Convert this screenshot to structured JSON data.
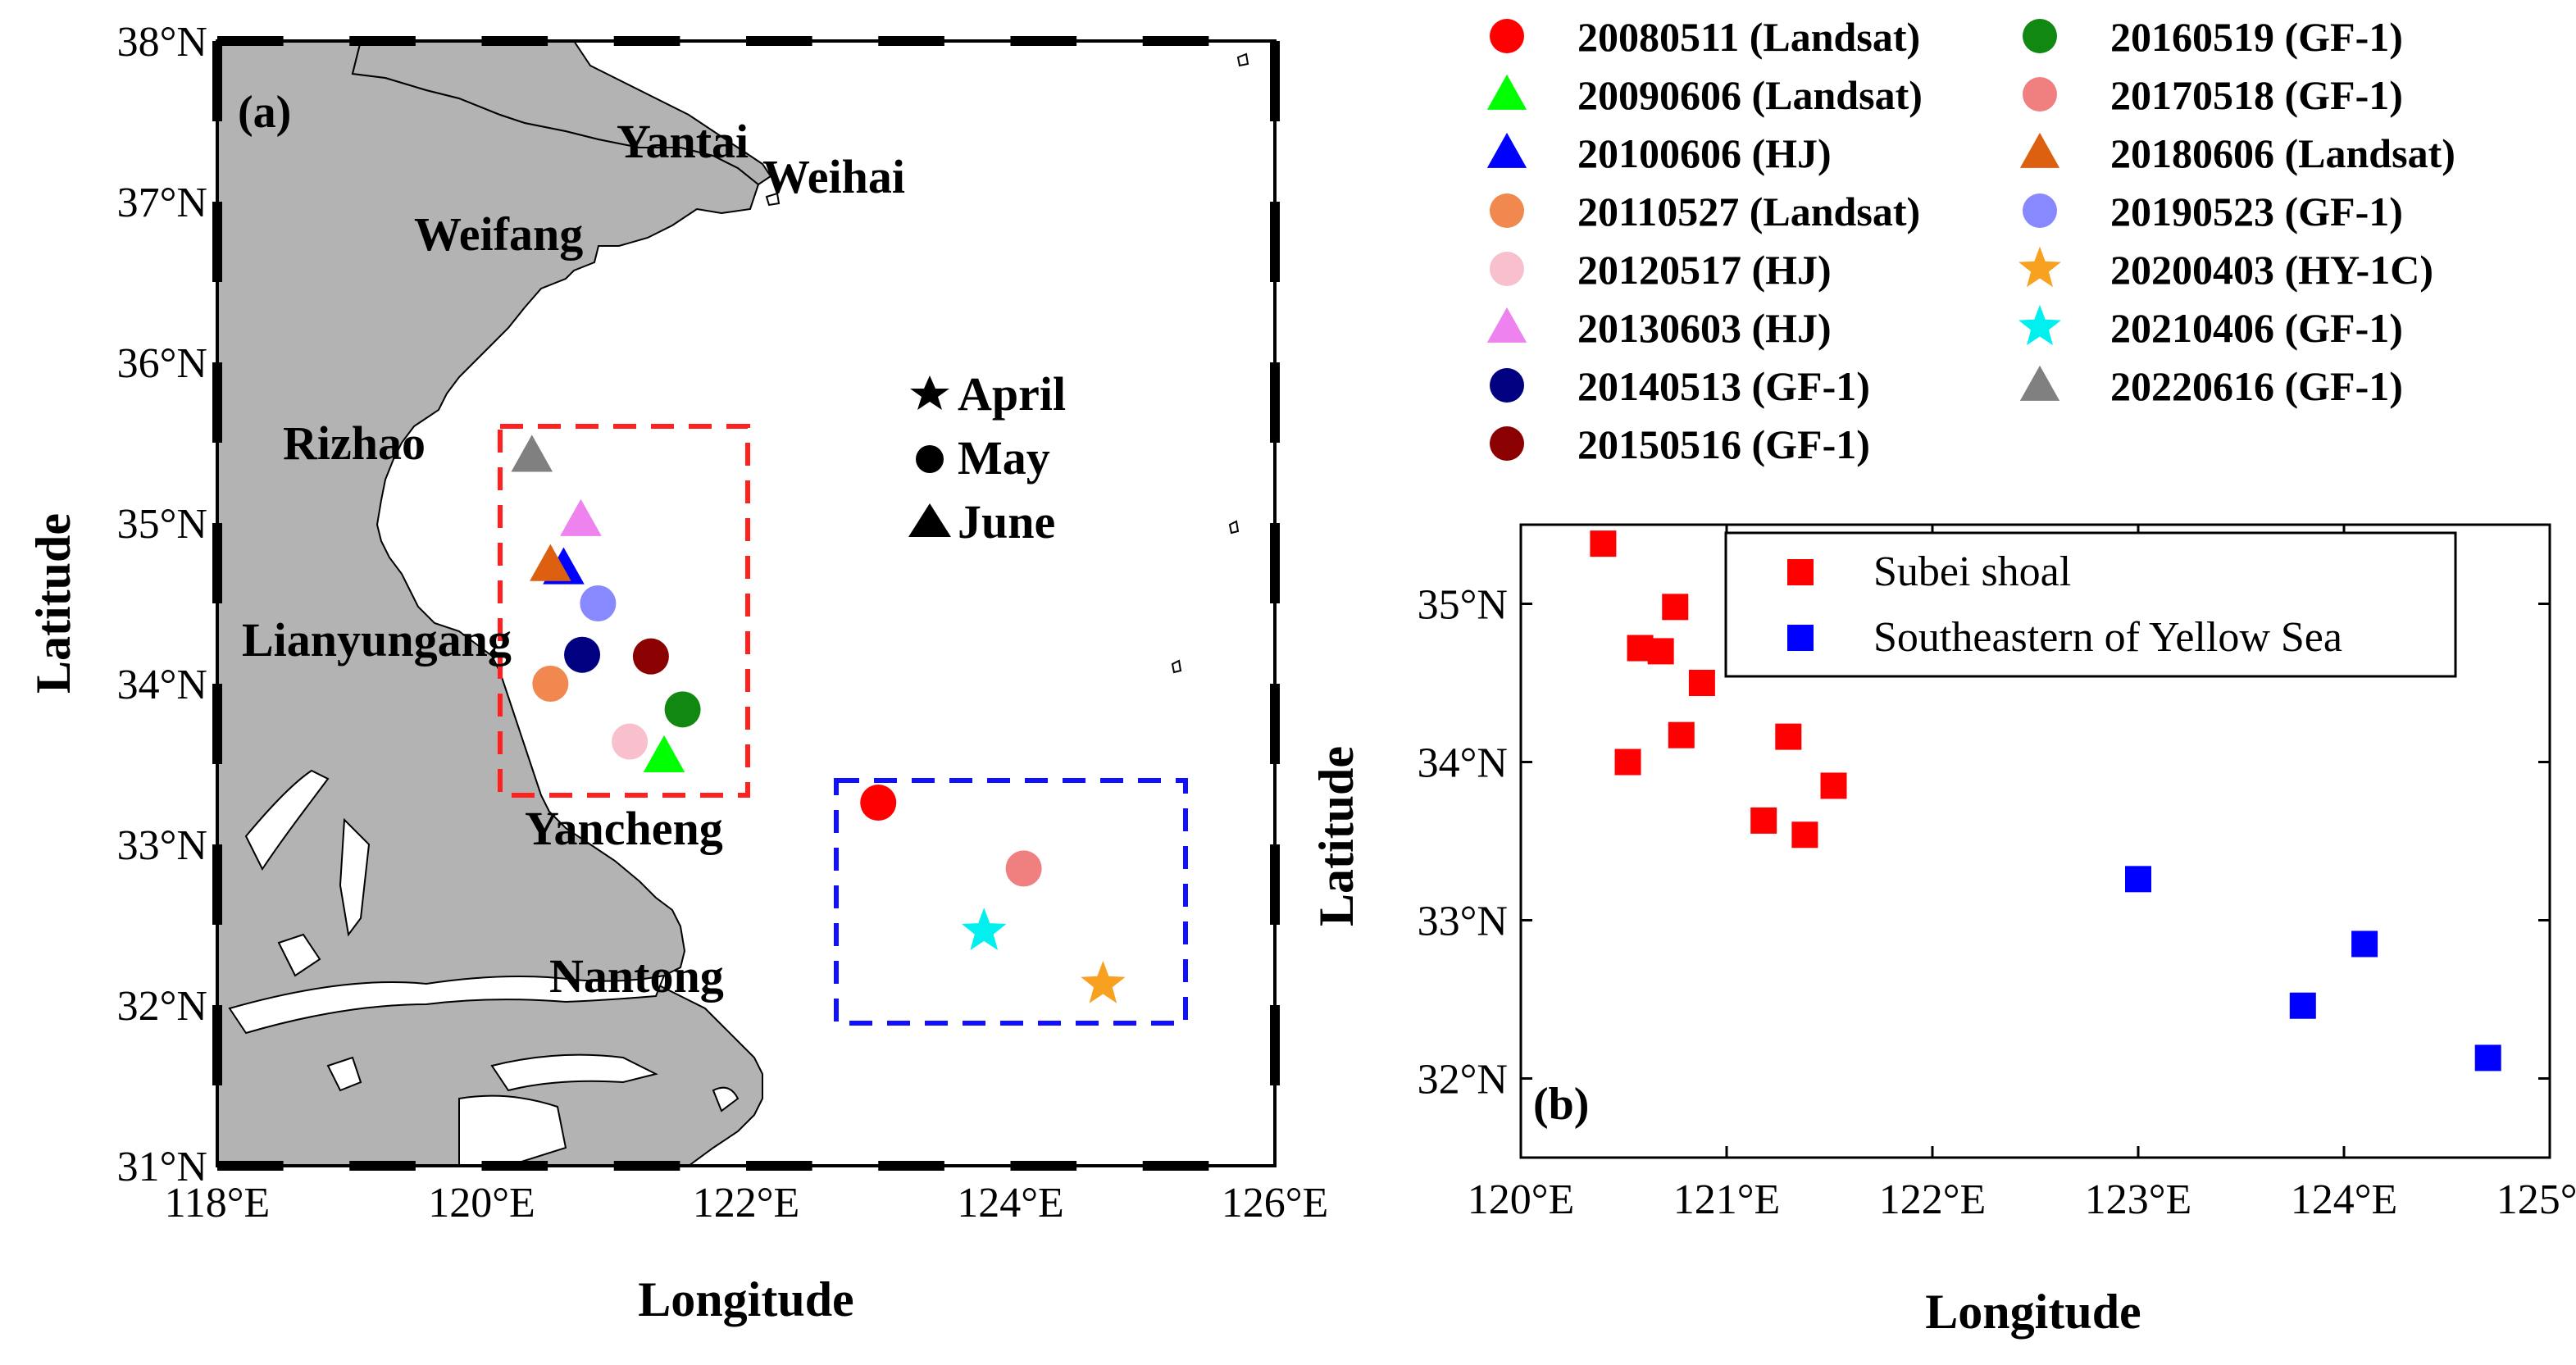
{
  "colors": {
    "land": "#b3b3b3",
    "red_box": "#ff2020",
    "blue_box": "#1010ff",
    "subbei": "#ff0000",
    "southeastern": "#0000ff"
  },
  "chart_data": [
    {
      "type": "scatter",
      "panel_label": "(a)",
      "xlabel": "Longitude",
      "ylabel": "Latitude",
      "xlim": [
        118,
        126
      ],
      "ylim": [
        31,
        38
      ],
      "x_ticks": [
        118,
        120,
        122,
        124,
        126
      ],
      "y_ticks": [
        31,
        32,
        33,
        34,
        35,
        36,
        37,
        38
      ],
      "x_tick_labels": [
        "118°E",
        "120°E",
        "122°E",
        "124°E",
        "126°E"
      ],
      "y_tick_labels": [
        "31°N",
        "32°N",
        "33°N",
        "34°N",
        "35°N",
        "36°N",
        "37°N",
        "38°N"
      ],
      "cities": [
        {
          "name": "Yantai",
          "lon": 121.0,
          "lat": 37.55
        },
        {
          "name": "Weihai",
          "lon": 121.95,
          "lat": 37.35
        },
        {
          "name": "Weifang",
          "lon": 119.5,
          "lat": 36.7
        },
        {
          "name": "Rizhao",
          "lon": 118.5,
          "lat": 35.4
        },
        {
          "name": "Lianyungang",
          "lon": 118.2,
          "lat": 34.15
        },
        {
          "name": "Yancheng",
          "lon": 120.4,
          "lat": 33.0
        },
        {
          "name": "Nantong",
          "lon": 120.55,
          "lat": 32.0
        }
      ],
      "boxes": [
        {
          "name": "Subei shoal region",
          "lon": [
            120.2,
            122.0
          ],
          "lat": [
            33.3,
            35.6
          ],
          "color": "#ff2020"
        },
        {
          "name": "Southeastern region",
          "lon": [
            122.75,
            125.25
          ],
          "lat": [
            31.9,
            33.4
          ],
          "color": "#1010ff"
        }
      ],
      "shape_legend": [
        {
          "shape": "star",
          "label": "April"
        },
        {
          "shape": "circle",
          "label": "May"
        },
        {
          "shape": "triangle",
          "label": "June"
        }
      ],
      "points": [
        {
          "label": "20080511 (Landsat)",
          "shape": "circle",
          "color": "#ff0000",
          "lon": 123.0,
          "lat": 33.26
        },
        {
          "label": "20090606 (Landsat)",
          "shape": "triangle",
          "color": "#00ff00",
          "lon": 121.38,
          "lat": 33.55
        },
        {
          "label": "20100606 (HJ)",
          "shape": "triangle",
          "color": "#0000ff",
          "lon": 120.62,
          "lat": 34.72
        },
        {
          "label": "20110527 (Landsat)",
          "shape": "circle",
          "color": "#f08850",
          "lon": 120.52,
          "lat": 34.0
        },
        {
          "label": "20120517 (HJ)",
          "shape": "circle",
          "color": "#f8c0cc",
          "lon": 121.12,
          "lat": 33.64
        },
        {
          "label": "20130603 (HJ)",
          "shape": "triangle",
          "color": "#ee82ee",
          "lon": 120.75,
          "lat": 35.02
        },
        {
          "label": "20140513 (GF-1)",
          "shape": "circle",
          "color": "#000080",
          "lon": 120.76,
          "lat": 34.18
        },
        {
          "label": "20150516 (GF-1)",
          "shape": "circle",
          "color": "#8b0000",
          "lon": 121.28,
          "lat": 34.17
        },
        {
          "label": "20160519 (GF-1)",
          "shape": "circle",
          "color": "#118811",
          "lon": 121.52,
          "lat": 33.84
        },
        {
          "label": "20170518 (GF-1)",
          "shape": "circle",
          "color": "#f08080",
          "lon": 124.1,
          "lat": 32.85
        },
        {
          "label": "20180606 (Landsat)",
          "shape": "triangle",
          "color": "#dd6010",
          "lon": 120.52,
          "lat": 34.74
        },
        {
          "label": "20190523 (GF-1)",
          "shape": "circle",
          "color": "#8888ff",
          "lon": 120.88,
          "lat": 34.5
        },
        {
          "label": "20200403 (HY-1C)",
          "shape": "star",
          "color": "#f8a020",
          "lon": 124.7,
          "lat": 32.13
        },
        {
          "label": "20210406 (GF-1)",
          "shape": "star",
          "color": "#00f0f0",
          "lon": 123.8,
          "lat": 32.46
        },
        {
          "label": "20220616 (GF-1)",
          "shape": "triangle",
          "color": "#808080",
          "lon": 120.38,
          "lat": 35.42
        }
      ]
    },
    {
      "type": "scatter",
      "panel_label": "(b)",
      "xlabel": "Longitude",
      "ylabel": "Latitude",
      "xlim": [
        120,
        125
      ],
      "ylim": [
        31.5,
        35.5
      ],
      "x_ticks": [
        120,
        121,
        122,
        123,
        124,
        125
      ],
      "y_ticks": [
        32,
        33,
        34,
        35
      ],
      "x_tick_labels": [
        "120°E",
        "121°E",
        "122°E",
        "123°E",
        "124°E",
        "125°E"
      ],
      "y_tick_labels": [
        "32°N",
        "33°N",
        "34°N",
        "35°N"
      ],
      "series": [
        {
          "name": "Subei shoal",
          "color": "#ff0000",
          "points": [
            {
              "x": 120.4,
              "y": 35.38
            },
            {
              "x": 120.75,
              "y": 34.98
            },
            {
              "x": 120.58,
              "y": 34.72
            },
            {
              "x": 120.68,
              "y": 34.7
            },
            {
              "x": 120.88,
              "y": 34.5
            },
            {
              "x": 120.78,
              "y": 34.17
            },
            {
              "x": 121.3,
              "y": 34.16
            },
            {
              "x": 120.52,
              "y": 34.0
            },
            {
              "x": 121.52,
              "y": 33.85
            },
            {
              "x": 121.18,
              "y": 33.63
            },
            {
              "x": 121.38,
              "y": 33.54
            }
          ]
        },
        {
          "name": "Southeastern of Yellow Sea",
          "color": "#0000ff",
          "points": [
            {
              "x": 123.0,
              "y": 33.26
            },
            {
              "x": 124.1,
              "y": 32.85
            },
            {
              "x": 123.8,
              "y": 32.46
            },
            {
              "x": 124.7,
              "y": 32.13
            }
          ]
        }
      ]
    }
  ]
}
